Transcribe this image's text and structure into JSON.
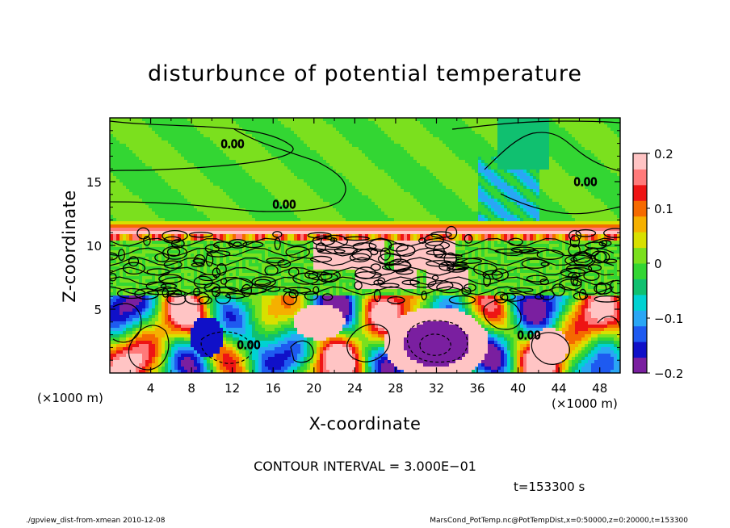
{
  "chart_data": {
    "type": "heatmap",
    "title": "disturbunce of potential temperature",
    "xlabel": "X-coordinate",
    "ylabel": "Z-coordinate",
    "x_unit_label": "(×1000 m)",
    "x_ticks": [
      4,
      8,
      12,
      16,
      20,
      24,
      28,
      32,
      36,
      40,
      44,
      48
    ],
    "y_ticks": [
      5,
      10,
      15
    ],
    "xlim": [
      0,
      50
    ],
    "ylim": [
      0,
      20
    ],
    "colorbar": {
      "min": -0.2,
      "max": 0.2,
      "ticks": [
        "0.2",
        "0.1",
        "0",
        "−0.1",
        "−0.2"
      ],
      "tick_values": [
        0.2,
        0.1,
        0,
        -0.1,
        -0.2
      ],
      "colors": [
        "#7a1fa0",
        "#1010c8",
        "#1e5af0",
        "#2aa6f5",
        "#00d2d2",
        "#10c070",
        "#33d633",
        "#7be01e",
        "#d8e000",
        "#f5b000",
        "#f56a00",
        "#ee1414",
        "#ff7a7a",
        "#ffc4c4"
      ]
    },
    "contour_labels": [
      "0.00",
      "0.00",
      "0.00",
      "0.00",
      "0.00"
    ],
    "contour_interval_text": "CONTOUR INTERVAL = 3.000E−01",
    "time_text": "t=153300 s"
  },
  "footer": {
    "left": "./gpview_dist-from-xmean  2010-12-08",
    "right": "MarsCond_PotTemp.nc@PotTempDist,x=0:50000,z=0:20000,t=153300"
  }
}
